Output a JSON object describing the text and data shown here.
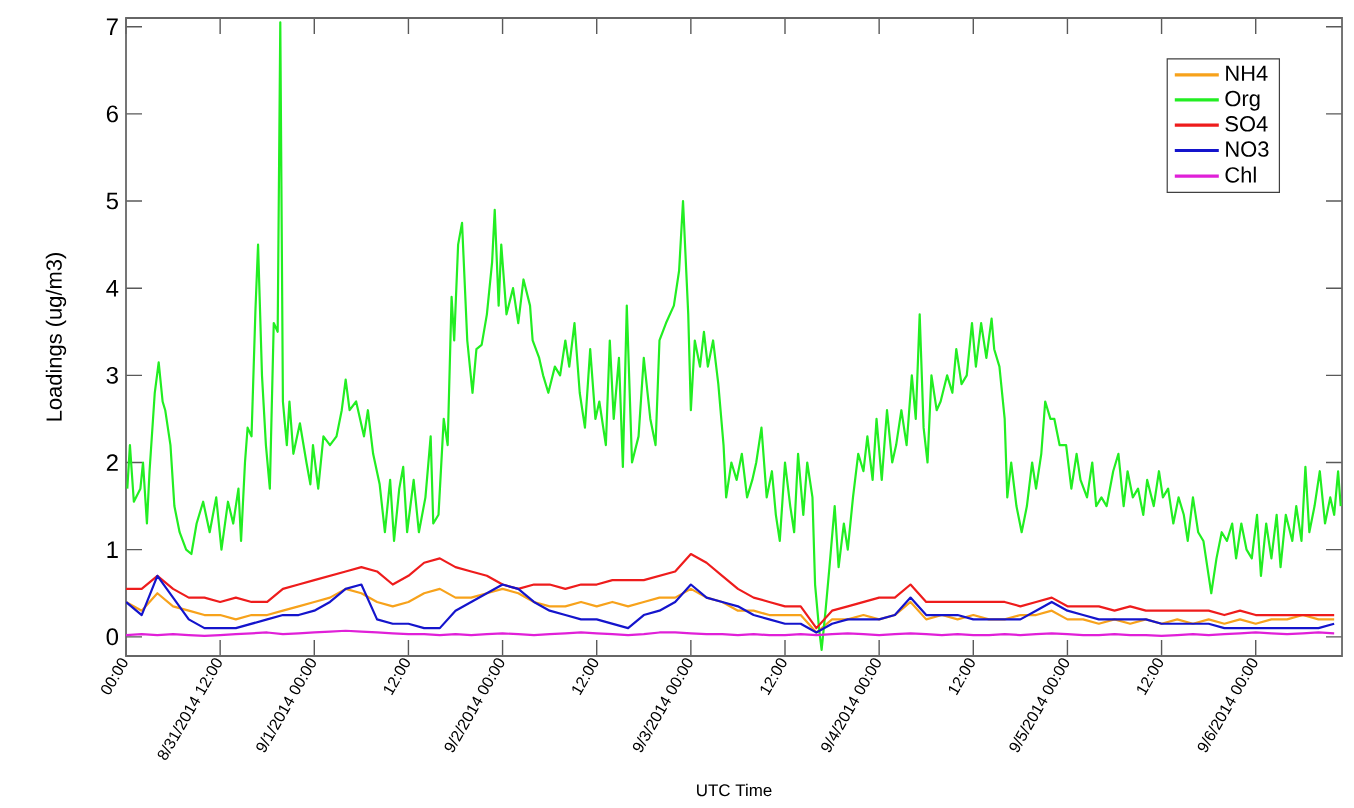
{
  "chart_data": {
    "type": "line",
    "xlabel": "UTC Time",
    "ylabel": "Loadings (ug/m3)",
    "x": [
      "2014-08-31T00:00",
      "2014-08-31T02:00",
      "2014-08-31T04:00",
      "2014-08-31T06:00",
      "2014-08-31T08:00",
      "2014-08-31T10:00",
      "2014-08-31T12:00",
      "2014-08-31T14:00",
      "2014-08-31T16:00",
      "2014-08-31T18:00",
      "2014-08-31T20:00",
      "2014-08-31T22:00",
      "2014-09-01T00:00",
      "2014-09-01T02:00",
      "2014-09-01T04:00",
      "2014-09-01T06:00",
      "2014-09-01T08:00",
      "2014-09-01T10:00",
      "2014-09-01T12:00",
      "2014-09-01T14:00",
      "2014-09-01T16:00",
      "2014-09-01T18:00",
      "2014-09-01T20:00",
      "2014-09-01T22:00",
      "2014-09-02T00:00",
      "2014-09-02T02:00",
      "2014-09-02T04:00",
      "2014-09-02T06:00",
      "2014-09-02T08:00",
      "2014-09-02T10:00",
      "2014-09-02T12:00",
      "2014-09-02T14:00",
      "2014-09-02T16:00",
      "2014-09-02T18:00",
      "2014-09-02T20:00",
      "2014-09-02T22:00",
      "2014-09-03T00:00",
      "2014-09-03T02:00",
      "2014-09-03T04:00",
      "2014-09-03T06:00",
      "2014-09-03T08:00",
      "2014-09-03T10:00",
      "2014-09-03T12:00",
      "2014-09-03T14:00",
      "2014-09-03T16:00",
      "2014-09-03T18:00",
      "2014-09-03T20:00",
      "2014-09-03T22:00",
      "2014-09-04T00:00",
      "2014-09-04T02:00",
      "2014-09-04T04:00",
      "2014-09-04T06:00",
      "2014-09-04T08:00",
      "2014-09-04T10:00",
      "2014-09-04T12:00",
      "2014-09-04T14:00",
      "2014-09-04T16:00",
      "2014-09-04T18:00",
      "2014-09-04T20:00",
      "2014-09-04T22:00",
      "2014-09-05T00:00",
      "2014-09-05T02:00",
      "2014-09-05T04:00",
      "2014-09-05T06:00",
      "2014-09-05T08:00",
      "2014-09-05T10:00",
      "2014-09-05T12:00",
      "2014-09-05T14:00",
      "2014-09-05T16:00",
      "2014-09-05T18:00",
      "2014-09-05T20:00",
      "2014-09-05T22:00",
      "2014-09-06T00:00",
      "2014-09-06T02:00",
      "2014-09-06T04:00",
      "2014-09-06T06:00",
      "2014-09-06T08:00",
      "2014-09-06T10:00"
    ],
    "series": [
      {
        "name": "NH4",
        "color": "#f7a21b",
        "values": [
          0.4,
          0.3,
          0.5,
          0.35,
          0.3,
          0.25,
          0.25,
          0.2,
          0.25,
          0.25,
          0.3,
          0.35,
          0.4,
          0.45,
          0.55,
          0.5,
          0.4,
          0.35,
          0.4,
          0.5,
          0.55,
          0.45,
          0.45,
          0.5,
          0.55,
          0.5,
          0.4,
          0.35,
          0.35,
          0.4,
          0.35,
          0.4,
          0.35,
          0.4,
          0.45,
          0.45,
          0.55,
          0.45,
          0.4,
          0.3,
          0.3,
          0.25,
          0.25,
          0.25,
          0.05,
          0.2,
          0.2,
          0.25,
          0.2,
          0.25,
          0.4,
          0.2,
          0.25,
          0.2,
          0.25,
          0.2,
          0.2,
          0.25,
          0.25,
          0.3,
          0.2,
          0.2,
          0.15,
          0.2,
          0.15,
          0.2,
          0.15,
          0.2,
          0.15,
          0.2,
          0.15,
          0.2,
          0.15,
          0.2,
          0.2,
          0.25,
          0.2,
          0.2
        ]
      },
      {
        "name": "Org",
        "color": "#22ee22",
        "x": [
          "2014-08-31T00:10",
          "2014-08-31T00:30",
          "2014-08-31T01:00",
          "2014-08-31T01:50",
          "2014-08-31T02:10",
          "2014-08-31T02:40",
          "2014-08-31T03:00",
          "2014-08-31T03:40",
          "2014-08-31T04:10",
          "2014-08-31T04:40",
          "2014-08-31T05:00",
          "2014-08-31T05:40",
          "2014-08-31T06:10",
          "2014-08-31T06:50",
          "2014-08-31T07:40",
          "2014-08-31T08:20",
          "2014-08-31T09:00",
          "2014-08-31T09:50",
          "2014-08-31T10:40",
          "2014-08-31T11:30",
          "2014-08-31T12:10",
          "2014-08-31T13:00",
          "2014-08-31T13:40",
          "2014-08-31T14:20",
          "2014-08-31T14:40",
          "2014-08-31T15:10",
          "2014-08-31T15:30",
          "2014-08-31T16:00",
          "2014-08-31T16:30",
          "2014-08-31T16:50",
          "2014-08-31T17:20",
          "2014-08-31T17:50",
          "2014-08-31T18:20",
          "2014-08-31T18:50",
          "2014-08-31T19:20",
          "2014-08-31T19:40",
          "2014-08-31T20:00",
          "2014-08-31T20:30",
          "2014-08-31T20:50",
          "2014-08-31T21:20",
          "2014-08-31T22:10",
          "2014-08-31T23:00",
          "2014-08-31T23:30",
          "2014-08-31T23:50",
          "2014-09-01T00:30",
          "2014-09-01T01:10",
          "2014-09-01T02:00",
          "2014-09-01T02:50",
          "2014-09-01T03:30",
          "2014-09-01T04:00",
          "2014-09-01T04:30",
          "2014-09-01T05:20",
          "2014-09-01T06:20",
          "2014-09-01T06:50",
          "2014-09-01T07:30",
          "2014-09-01T08:20",
          "2014-09-01T09:00",
          "2014-09-01T09:40",
          "2014-09-01T10:10",
          "2014-09-01T10:50",
          "2014-09-01T11:20",
          "2014-09-01T11:50",
          "2014-09-01T12:40",
          "2014-09-01T13:20",
          "2014-09-01T14:10",
          "2014-09-01T14:50",
          "2014-09-01T15:10",
          "2014-09-01T15:50",
          "2014-09-01T16:30",
          "2014-09-01T17:00",
          "2014-09-01T17:30",
          "2014-09-01T17:50",
          "2014-09-01T18:20",
          "2014-09-01T18:50",
          "2014-09-01T19:30",
          "2014-09-01T20:10",
          "2014-09-01T20:40",
          "2014-09-01T21:20",
          "2014-09-01T22:00",
          "2014-09-01T22:40",
          "2014-09-01T23:00",
          "2014-09-01T23:30",
          "2014-09-01T23:50",
          "2014-09-02T00:30",
          "2014-09-02T01:20",
          "2014-09-02T02:00",
          "2014-09-02T02:40",
          "2014-09-02T03:30",
          "2014-09-02T03:50",
          "2014-09-02T04:40",
          "2014-09-02T05:10",
          "2014-09-02T05:50",
          "2014-09-02T06:40",
          "2014-09-02T07:20",
          "2014-09-02T08:00",
          "2014-09-02T08:30",
          "2014-09-02T09:10",
          "2014-09-02T09:50",
          "2014-09-02T10:30",
          "2014-09-02T11:10",
          "2014-09-02T11:50",
          "2014-09-02T12:20",
          "2014-09-02T13:10",
          "2014-09-02T13:40",
          "2014-09-02T14:10",
          "2014-09-02T14:50",
          "2014-09-02T15:20",
          "2014-09-02T15:50",
          "2014-09-02T16:30",
          "2014-09-02T17:20",
          "2014-09-02T18:00",
          "2014-09-02T18:50",
          "2014-09-02T19:30",
          "2014-09-02T20:00",
          "2014-09-02T20:50",
          "2014-09-02T21:50",
          "2014-09-02T22:30",
          "2014-09-02T23:00",
          "2014-09-02T23:40",
          "2014-09-03T00:00",
          "2014-09-03T00:30",
          "2014-09-03T01:10",
          "2014-09-03T01:40",
          "2014-09-03T02:10",
          "2014-09-03T02:50",
          "2014-09-03T03:30",
          "2014-09-03T04:10",
          "2014-09-03T04:30",
          "2014-09-03T05:10",
          "2014-09-03T05:50",
          "2014-09-03T06:30",
          "2014-09-03T07:10",
          "2014-09-03T07:50",
          "2014-09-03T08:20",
          "2014-09-03T09:00",
          "2014-09-03T09:40",
          "2014-09-03T10:20",
          "2014-09-03T10:50",
          "2014-09-03T11:20",
          "2014-09-03T12:00",
          "2014-09-03T12:40",
          "2014-09-03T13:10",
          "2014-09-03T13:40",
          "2014-09-03T14:20",
          "2014-09-03T14:50",
          "2014-09-03T15:30",
          "2014-09-03T15:50",
          "2014-09-03T16:20",
          "2014-09-03T16:40",
          "2014-09-03T17:10",
          "2014-09-03T17:40",
          "2014-09-03T18:20",
          "2014-09-03T18:50",
          "2014-09-03T19:30",
          "2014-09-03T20:00",
          "2014-09-03T20:40",
          "2014-09-03T21:20",
          "2014-09-03T22:00",
          "2014-09-03T22:30",
          "2014-09-03T23:10",
          "2014-09-03T23:40",
          "2014-09-04T00:20",
          "2014-09-04T01:00",
          "2014-09-04T01:40",
          "2014-09-04T02:10",
          "2014-09-04T02:50",
          "2014-09-04T03:30",
          "2014-09-04T04:10",
          "2014-09-04T04:40",
          "2014-09-04T05:10",
          "2014-09-04T05:40",
          "2014-09-04T06:10",
          "2014-09-04T06:40",
          "2014-09-04T07:20",
          "2014-09-04T07:50",
          "2014-09-04T08:40",
          "2014-09-04T09:20",
          "2014-09-04T09:50",
          "2014-09-04T10:30",
          "2014-09-04T11:10",
          "2014-09-04T11:50",
          "2014-09-04T12:20",
          "2014-09-04T13:00",
          "2014-09-04T13:40",
          "2014-09-04T14:20",
          "2014-09-04T14:40",
          "2014-09-04T15:20",
          "2014-09-04T16:00",
          "2014-09-04T16:20",
          "2014-09-04T16:50",
          "2014-09-04T17:30",
          "2014-09-04T18:10",
          "2014-09-04T18:50",
          "2014-09-04T19:30",
          "2014-09-04T20:00",
          "2014-09-04T20:40",
          "2014-09-04T21:10",
          "2014-09-04T21:50",
          "2014-09-04T22:20",
          "2014-09-04T23:00",
          "2014-09-04T23:50",
          "2014-09-05T00:30",
          "2014-09-05T01:10",
          "2014-09-05T01:40",
          "2014-09-05T02:30",
          "2014-09-05T03:10",
          "2014-09-05T03:40",
          "2014-09-05T04:20",
          "2014-09-05T05:00",
          "2014-09-05T05:50",
          "2014-09-05T06:30",
          "2014-09-05T07:10",
          "2014-09-05T07:40",
          "2014-09-05T08:20",
          "2014-09-05T09:00",
          "2014-09-05T09:40",
          "2014-09-05T10:10",
          "2014-09-05T11:00",
          "2014-09-05T11:40",
          "2014-09-05T12:10",
          "2014-09-05T12:50",
          "2014-09-05T13:30",
          "2014-09-05T14:10",
          "2014-09-05T14:50",
          "2014-09-05T15:20",
          "2014-09-05T16:00",
          "2014-09-05T16:40",
          "2014-09-05T17:20",
          "2014-09-05T17:50",
          "2014-09-05T18:20",
          "2014-09-05T19:00",
          "2014-09-05T19:40",
          "2014-09-05T20:20",
          "2014-09-05T21:00",
          "2014-09-05T21:30",
          "2014-09-05T22:10",
          "2014-09-05T22:50",
          "2014-09-05T23:30",
          "2014-09-06T00:10",
          "2014-09-06T00:40",
          "2014-09-06T01:20",
          "2014-09-06T02:00",
          "2014-09-06T02:40",
          "2014-09-06T03:10",
          "2014-09-06T03:50",
          "2014-09-06T04:40",
          "2014-09-06T05:10",
          "2014-09-06T05:50",
          "2014-09-06T06:20",
          "2014-09-06T06:50",
          "2014-09-06T07:30",
          "2014-09-06T08:10",
          "2014-09-06T08:50",
          "2014-09-06T09:30",
          "2014-09-06T10:00",
          "2014-09-06T10:30",
          "2014-09-06T10:50"
        ],
        "values": [
          1.7,
          2.2,
          1.55,
          1.7,
          2.0,
          1.3,
          1.9,
          2.8,
          3.15,
          2.7,
          2.6,
          2.2,
          1.5,
          1.2,
          1.0,
          0.95,
          1.3,
          1.55,
          1.2,
          1.6,
          1.0,
          1.55,
          1.3,
          1.7,
          1.1,
          2.0,
          2.4,
          2.3,
          3.75,
          4.5,
          3.0,
          2.2,
          1.7,
          3.6,
          3.5,
          7.05,
          2.7,
          2.2,
          2.7,
          2.1,
          2.45,
          2.0,
          1.75,
          2.2,
          1.7,
          2.3,
          2.2,
          2.3,
          2.6,
          2.95,
          2.6,
          2.7,
          2.3,
          2.6,
          2.1,
          1.75,
          1.2,
          1.8,
          1.1,
          1.7,
          1.95,
          1.2,
          1.8,
          1.2,
          1.6,
          2.3,
          1.3,
          1.4,
          2.5,
          2.2,
          3.9,
          3.4,
          4.5,
          4.75,
          3.4,
          2.8,
          3.3,
          3.35,
          3.7,
          4.3,
          4.9,
          3.8,
          4.5,
          3.7,
          4.0,
          3.6,
          4.1,
          3.8,
          3.4,
          3.2,
          3.0,
          2.8,
          3.1,
          3.0,
          3.4,
          3.1,
          3.6,
          2.8,
          2.4,
          3.3,
          2.5,
          2.7,
          2.2,
          3.4,
          2.5,
          3.2,
          1.95,
          3.8,
          2.0,
          2.3,
          3.2,
          2.5,
          2.2,
          3.4,
          3.6,
          3.8,
          4.2,
          5.0,
          3.7,
          2.6,
          3.4,
          3.1,
          3.5,
          3.1,
          3.4,
          2.9,
          2.2,
          1.6,
          2.0,
          1.8,
          2.1,
          1.6,
          1.8,
          2.0,
          2.4,
          1.6,
          1.9,
          1.4,
          1.1,
          2.0,
          1.5,
          1.2,
          2.1,
          1.4,
          2.0,
          1.6,
          0.6,
          0.1,
          -0.15,
          0.3,
          0.8,
          1.5,
          0.8,
          1.3,
          1.0,
          1.6,
          2.1,
          1.9,
          2.3,
          1.8,
          2.5,
          1.8,
          2.6,
          2.0,
          2.2,
          2.6,
          2.2,
          3.0,
          2.5,
          3.7,
          2.4,
          2.0,
          3.0,
          2.6,
          2.7,
          3.0,
          2.8,
          3.3,
          2.9,
          3.0,
          3.6,
          3.1,
          3.6,
          3.2,
          3.65,
          3.3,
          3.1,
          2.5,
          1.6,
          2.0,
          1.5,
          1.2,
          1.5,
          2.0,
          1.7,
          2.1,
          2.7,
          2.5,
          2.5,
          2.2,
          2.2,
          1.7,
          2.1,
          1.8,
          1.6,
          2.0,
          1.5,
          1.6,
          1.5,
          1.9,
          2.1,
          1.5,
          1.9,
          1.6,
          1.7,
          1.4,
          1.8,
          1.5,
          1.9,
          1.6,
          1.7,
          1.3,
          1.6,
          1.4,
          1.1,
          1.6,
          1.2,
          1.1,
          0.8,
          0.5,
          0.9,
          1.2,
          1.1,
          1.3,
          0.9,
          1.3,
          1.0,
          0.9,
          1.4,
          0.7,
          1.3,
          0.9,
          1.4,
          0.8,
          1.4,
          1.1,
          1.5,
          1.1,
          1.95,
          1.2,
          1.5,
          1.9,
          1.3,
          1.6,
          1.4,
          1.9,
          1.5
        ]
      },
      {
        "name": "SO4",
        "color": "#ee1c1c",
        "values": [
          0.55,
          0.55,
          0.7,
          0.55,
          0.45,
          0.45,
          0.4,
          0.45,
          0.4,
          0.4,
          0.55,
          0.6,
          0.65,
          0.7,
          0.75,
          0.8,
          0.75,
          0.6,
          0.7,
          0.85,
          0.9,
          0.8,
          0.75,
          0.7,
          0.6,
          0.55,
          0.6,
          0.6,
          0.55,
          0.6,
          0.6,
          0.65,
          0.65,
          0.65,
          0.7,
          0.75,
          0.95,
          0.85,
          0.7,
          0.55,
          0.45,
          0.4,
          0.35,
          0.35,
          0.1,
          0.3,
          0.35,
          0.4,
          0.45,
          0.45,
          0.6,
          0.4,
          0.4,
          0.4,
          0.4,
          0.4,
          0.4,
          0.35,
          0.4,
          0.45,
          0.35,
          0.35,
          0.35,
          0.3,
          0.35,
          0.3,
          0.3,
          0.3,
          0.3,
          0.3,
          0.25,
          0.3,
          0.25,
          0.25,
          0.25,
          0.25,
          0.25,
          0.25
        ]
      },
      {
        "name": "NO3",
        "color": "#1414cc",
        "values": [
          0.4,
          0.25,
          0.7,
          0.45,
          0.2,
          0.1,
          0.1,
          0.1,
          0.15,
          0.2,
          0.25,
          0.25,
          0.3,
          0.4,
          0.55,
          0.6,
          0.2,
          0.15,
          0.15,
          0.1,
          0.1,
          0.3,
          0.4,
          0.5,
          0.6,
          0.55,
          0.4,
          0.3,
          0.25,
          0.2,
          0.2,
          0.15,
          0.1,
          0.25,
          0.3,
          0.4,
          0.6,
          0.45,
          0.4,
          0.35,
          0.25,
          0.2,
          0.15,
          0.15,
          0.05,
          0.15,
          0.2,
          0.2,
          0.2,
          0.25,
          0.45,
          0.25,
          0.25,
          0.25,
          0.2,
          0.2,
          0.2,
          0.2,
          0.3,
          0.4,
          0.3,
          0.25,
          0.2,
          0.2,
          0.2,
          0.2,
          0.15,
          0.15,
          0.15,
          0.15,
          0.1,
          0.1,
          0.1,
          0.1,
          0.1,
          0.1,
          0.1,
          0.15
        ]
      },
      {
        "name": "Chl",
        "color": "#e020d8",
        "values": [
          0.02,
          0.03,
          0.02,
          0.03,
          0.02,
          0.01,
          0.02,
          0.03,
          0.04,
          0.05,
          0.03,
          0.04,
          0.05,
          0.06,
          0.07,
          0.06,
          0.05,
          0.04,
          0.03,
          0.03,
          0.02,
          0.03,
          0.02,
          0.03,
          0.04,
          0.03,
          0.02,
          0.03,
          0.04,
          0.05,
          0.04,
          0.03,
          0.02,
          0.03,
          0.05,
          0.05,
          0.04,
          0.03,
          0.03,
          0.02,
          0.03,
          0.02,
          0.02,
          0.03,
          0.02,
          0.03,
          0.04,
          0.03,
          0.02,
          0.03,
          0.04,
          0.03,
          0.02,
          0.03,
          0.02,
          0.02,
          0.03,
          0.02,
          0.03,
          0.04,
          0.03,
          0.02,
          0.02,
          0.03,
          0.02,
          0.02,
          0.01,
          0.02,
          0.03,
          0.02,
          0.03,
          0.04,
          0.05,
          0.04,
          0.03,
          0.04,
          0.05,
          0.04
        ]
      }
    ],
    "xlim": [
      "2014-08-31T00:00",
      "2014-09-06T11:00"
    ],
    "ylim": [
      -0.22,
      7.1
    ],
    "xticks": [
      {
        "value": "2014-08-31T00:00",
        "label": "00:00"
      },
      {
        "value": "2014-08-31T12:00",
        "label": "8/31/2014 12:00"
      },
      {
        "value": "2014-09-01T00:00",
        "label": "9/1/2014 00:00"
      },
      {
        "value": "2014-09-01T12:00",
        "label": "12:00"
      },
      {
        "value": "2014-09-02T00:00",
        "label": "9/2/2014 00:00"
      },
      {
        "value": "2014-09-02T12:00",
        "label": "12:00"
      },
      {
        "value": "2014-09-03T00:00",
        "label": "9/3/2014 00:00"
      },
      {
        "value": "2014-09-03T12:00",
        "label": "12:00"
      },
      {
        "value": "2014-09-04T00:00",
        "label": "9/4/2014 00:00"
      },
      {
        "value": "2014-09-04T12:00",
        "label": "12:00"
      },
      {
        "value": "2014-09-05T00:00",
        "label": "9/5/2014 00:00"
      },
      {
        "value": "2014-09-05T12:00",
        "label": "12:00"
      },
      {
        "value": "2014-09-06T00:00",
        "label": "9/6/2014 00:00"
      }
    ],
    "yticks": [
      0,
      1,
      2,
      3,
      4,
      5,
      6,
      7
    ],
    "legend": "top right",
    "marker": "none",
    "line_style": "solid"
  }
}
